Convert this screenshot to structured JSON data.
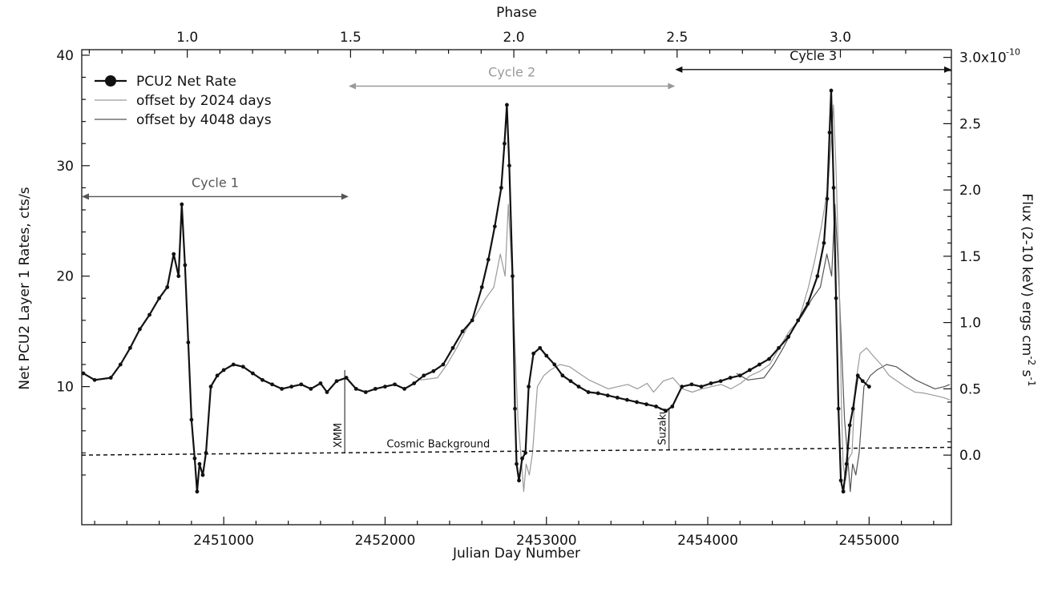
{
  "chart_data": {
    "type": "line",
    "xlabel": "Julian Day Number",
    "ylabel": "Net PCU2 Layer 1 Rates, cts/s",
    "y2label": "Flux (2-10 keV) ergs cm",
    "y2label_sup1": "-2",
    "y2label_mid": " s",
    "y2label_sup2": "-1",
    "toplabel": "Phase",
    "xlim": [
      2450120,
      2455510
    ],
    "ylim": [
      -2.5,
      40.5
    ],
    "x_ticks": [
      2451000,
      2452000,
      2453000,
      2454000,
      2455000
    ],
    "x_tick_labels": [
      "2451000",
      "2452000",
      "2453000",
      "2454000",
      "2455000"
    ],
    "y_ticks": [
      10,
      20,
      30,
      40
    ],
    "y_tick_labels": [
      "10",
      "20",
      "30",
      "40"
    ],
    "y2_ticks": [
      0.0,
      0.5,
      1.0,
      1.5,
      2.0,
      2.5,
      3.0
    ],
    "y2_tick_labels": [
      "0.0",
      "0.5",
      "1.0",
      "1.5",
      "2.0",
      "2.5",
      "3.0x10"
    ],
    "y2_tick_exponent": "-10",
    "y2_scale_factor": 12.0,
    "y2_offset": 3.8,
    "phase_ticks": [
      1.0,
      1.5,
      2.0,
      2.5,
      3.0
    ],
    "phase_tick_labels": [
      "1.0",
      "1.5",
      "2.0",
      "2.5",
      "3.0"
    ],
    "phase_zero_jd": 2448750,
    "period_days": 2024,
    "legend_position": "top-left",
    "legend": [
      {
        "label": "PCU2 Net Rate",
        "style": "black-line-markers"
      },
      {
        "label": "offset by 2024 days",
        "style": "thin-gray"
      },
      {
        "label": "offset by 4048 days",
        "style": "thin-dark-gray"
      }
    ],
    "cycles": [
      {
        "label": "Cycle 1",
        "x_start": 2450120,
        "x_end": 2451774,
        "y": 27.2,
        "color": "#555555"
      },
      {
        "label": "Cycle 2",
        "x_start": 2451774,
        "x_end": 2453798,
        "y": 37.2,
        "color": "#999999"
      },
      {
        "label": "Cycle 3",
        "x_start": 2453798,
        "x_end": 2455510,
        "y": 38.7,
        "color": "#111111"
      }
    ],
    "background_level": {
      "label": "Cosmic Background",
      "y_start": 3.8,
      "y_end": 4.5
    },
    "observations": [
      {
        "label": "XMM",
        "x": 2451750,
        "y_top": 11.5
      },
      {
        "label": "Suzaku",
        "x": 2453760,
        "y_top": 8.0
      }
    ],
    "series": [
      {
        "name": "PCU2 Net Rate",
        "color": "#111111",
        "points": [
          [
            2450130,
            11.2
          ],
          [
            2450200,
            10.6
          ],
          [
            2450300,
            10.8
          ],
          [
            2450360,
            12.0
          ],
          [
            2450420,
            13.5
          ],
          [
            2450480,
            15.2
          ],
          [
            2450540,
            16.5
          ],
          [
            2450600,
            18.0
          ],
          [
            2450650,
            19.0
          ],
          [
            2450690,
            22.0
          ],
          [
            2450720,
            20.0
          ],
          [
            2450740,
            26.5
          ],
          [
            2450760,
            21.0
          ],
          [
            2450780,
            14.0
          ],
          [
            2450800,
            7.0
          ],
          [
            2450820,
            3.5
          ],
          [
            2450835,
            0.5
          ],
          [
            2450850,
            3.0
          ],
          [
            2450870,
            2.0
          ],
          [
            2450890,
            4.0
          ],
          [
            2450920,
            10.0
          ],
          [
            2450960,
            11.0
          ],
          [
            2451000,
            11.5
          ],
          [
            2451060,
            12.0
          ],
          [
            2451120,
            11.8
          ],
          [
            2451180,
            11.2
          ],
          [
            2451240,
            10.6
          ],
          [
            2451300,
            10.2
          ],
          [
            2451360,
            9.8
          ],
          [
            2451420,
            10.0
          ],
          [
            2451480,
            10.2
          ],
          [
            2451540,
            9.8
          ],
          [
            2451600,
            10.3
          ],
          [
            2451640,
            9.5
          ],
          [
            2451700,
            10.5
          ],
          [
            2451760,
            10.8
          ],
          [
            2451820,
            9.8
          ],
          [
            2451880,
            9.5
          ],
          [
            2451940,
            9.8
          ],
          [
            2452000,
            10.0
          ],
          [
            2452060,
            10.2
          ],
          [
            2452120,
            9.8
          ],
          [
            2452180,
            10.3
          ],
          [
            2452240,
            11.0
          ],
          [
            2452300,
            11.4
          ],
          [
            2452360,
            12.0
          ],
          [
            2452420,
            13.5
          ],
          [
            2452480,
            15.0
          ],
          [
            2452540,
            16.0
          ],
          [
            2452600,
            19.0
          ],
          [
            2452640,
            21.5
          ],
          [
            2452680,
            24.5
          ],
          [
            2452720,
            28.0
          ],
          [
            2452740,
            32.0
          ],
          [
            2452755,
            35.5
          ],
          [
            2452770,
            30.0
          ],
          [
            2452790,
            20.0
          ],
          [
            2452805,
            8.0
          ],
          [
            2452815,
            3.0
          ],
          [
            2452830,
            1.5
          ],
          [
            2452850,
            3.5
          ],
          [
            2452870,
            4.0
          ],
          [
            2452890,
            10.0
          ],
          [
            2452920,
            13.0
          ],
          [
            2452960,
            13.5
          ],
          [
            2453000,
            12.8
          ],
          [
            2453050,
            12.0
          ],
          [
            2453100,
            11.0
          ],
          [
            2453150,
            10.5
          ],
          [
            2453200,
            10.0
          ],
          [
            2453260,
            9.5
          ],
          [
            2453320,
            9.4
          ],
          [
            2453380,
            9.2
          ],
          [
            2453440,
            9.0
          ],
          [
            2453500,
            8.8
          ],
          [
            2453560,
            8.6
          ],
          [
            2453620,
            8.4
          ],
          [
            2453680,
            8.2
          ],
          [
            2453740,
            7.8
          ],
          [
            2453780,
            8.2
          ],
          [
            2453840,
            10.0
          ],
          [
            2453900,
            10.2
          ],
          [
            2453960,
            10.0
          ],
          [
            2454020,
            10.3
          ],
          [
            2454080,
            10.5
          ],
          [
            2454140,
            10.8
          ],
          [
            2454200,
            11.0
          ],
          [
            2454260,
            11.5
          ],
          [
            2454320,
            12.0
          ],
          [
            2454380,
            12.5
          ],
          [
            2454440,
            13.5
          ],
          [
            2454500,
            14.5
          ],
          [
            2454560,
            16.0
          ],
          [
            2454620,
            17.5
          ],
          [
            2454680,
            20.0
          ],
          [
            2454720,
            23.0
          ],
          [
            2454740,
            27.0
          ],
          [
            2454755,
            33.0
          ],
          [
            2454765,
            36.8
          ],
          [
            2454780,
            28.0
          ],
          [
            2454795,
            18.0
          ],
          [
            2454810,
            8.0
          ],
          [
            2454825,
            1.5
          ],
          [
            2454840,
            0.5
          ],
          [
            2454860,
            3.0
          ],
          [
            2454880,
            6.5
          ],
          [
            2454900,
            8.0
          ],
          [
            2454930,
            11.0
          ],
          [
            2454960,
            10.5
          ],
          [
            2455000,
            10.0
          ]
        ]
      },
      {
        "name": "offset by 2024 days",
        "color": "#9a9a9a",
        "points": [
          [
            2452154,
            11.2
          ],
          [
            2452224,
            10.6
          ],
          [
            2452324,
            10.8
          ],
          [
            2452384,
            12.0
          ],
          [
            2452444,
            13.5
          ],
          [
            2452504,
            15.2
          ],
          [
            2452564,
            16.5
          ],
          [
            2452624,
            18.0
          ],
          [
            2452674,
            19.0
          ],
          [
            2452714,
            22.0
          ],
          [
            2452744,
            20.0
          ],
          [
            2452764,
            26.5
          ],
          [
            2452784,
            21.0
          ],
          [
            2452804,
            14.0
          ],
          [
            2452824,
            7.0
          ],
          [
            2452844,
            3.5
          ],
          [
            2452859,
            0.5
          ],
          [
            2452874,
            3.0
          ],
          [
            2452894,
            2.0
          ],
          [
            2452914,
            4.0
          ],
          [
            2452944,
            10.0
          ],
          [
            2452984,
            11.0
          ],
          [
            2453024,
            11.5
          ],
          [
            2453084,
            12.0
          ],
          [
            2453144,
            11.8
          ],
          [
            2453204,
            11.2
          ],
          [
            2453264,
            10.6
          ],
          [
            2453324,
            10.2
          ],
          [
            2453384,
            9.8
          ],
          [
            2453444,
            10.0
          ],
          [
            2453504,
            10.2
          ],
          [
            2453564,
            9.8
          ],
          [
            2453624,
            10.3
          ],
          [
            2453664,
            9.5
          ],
          [
            2453724,
            10.5
          ],
          [
            2453784,
            10.8
          ],
          [
            2453844,
            9.8
          ],
          [
            2453904,
            9.5
          ],
          [
            2453964,
            9.8
          ],
          [
            2454024,
            10.0
          ],
          [
            2454084,
            10.2
          ],
          [
            2454144,
            9.8
          ],
          [
            2454204,
            10.3
          ],
          [
            2454264,
            11.0
          ],
          [
            2454324,
            11.4
          ],
          [
            2454384,
            12.0
          ],
          [
            2454444,
            13.5
          ],
          [
            2454504,
            15.0
          ],
          [
            2454564,
            16.0
          ],
          [
            2454624,
            19.0
          ],
          [
            2454664,
            21.5
          ],
          [
            2454704,
            24.5
          ],
          [
            2454744,
            28.0
          ],
          [
            2454764,
            32.0
          ],
          [
            2454779,
            35.5
          ],
          [
            2454794,
            30.0
          ],
          [
            2454814,
            20.0
          ],
          [
            2454829,
            8.0
          ],
          [
            2454839,
            3.0
          ],
          [
            2454854,
            1.5
          ],
          [
            2454874,
            3.5
          ],
          [
            2454894,
            4.0
          ],
          [
            2454914,
            10.0
          ],
          [
            2454944,
            13.0
          ],
          [
            2454984,
            13.5
          ],
          [
            2455024,
            12.8
          ],
          [
            2455074,
            12.0
          ],
          [
            2455124,
            11.0
          ],
          [
            2455174,
            10.5
          ],
          [
            2455224,
            10.0
          ],
          [
            2455284,
            9.5
          ],
          [
            2455344,
            9.4
          ],
          [
            2455404,
            9.2
          ],
          [
            2455464,
            9.0
          ],
          [
            2455500,
            8.8
          ]
        ]
      },
      {
        "name": "offset by 4048 days",
        "color": "#555555",
        "points": [
          [
            2454178,
            11.2
          ],
          [
            2454248,
            10.6
          ],
          [
            2454348,
            10.8
          ],
          [
            2454408,
            12.0
          ],
          [
            2454468,
            13.5
          ],
          [
            2454528,
            15.2
          ],
          [
            2454588,
            16.5
          ],
          [
            2454648,
            18.0
          ],
          [
            2454698,
            19.0
          ],
          [
            2454738,
            22.0
          ],
          [
            2454768,
            20.0
          ],
          [
            2454788,
            26.5
          ],
          [
            2454808,
            21.0
          ],
          [
            2454828,
            14.0
          ],
          [
            2454848,
            7.0
          ],
          [
            2454868,
            3.5
          ],
          [
            2454883,
            0.5
          ],
          [
            2454898,
            3.0
          ],
          [
            2454918,
            2.0
          ],
          [
            2454938,
            4.0
          ],
          [
            2454968,
            10.0
          ],
          [
            2455008,
            11.0
          ],
          [
            2455048,
            11.5
          ],
          [
            2455108,
            12.0
          ],
          [
            2455168,
            11.8
          ],
          [
            2455228,
            11.2
          ],
          [
            2455288,
            10.6
          ],
          [
            2455348,
            10.2
          ],
          [
            2455408,
            9.8
          ],
          [
            2455468,
            10.0
          ],
          [
            2455500,
            10.2
          ]
        ]
      }
    ]
  }
}
